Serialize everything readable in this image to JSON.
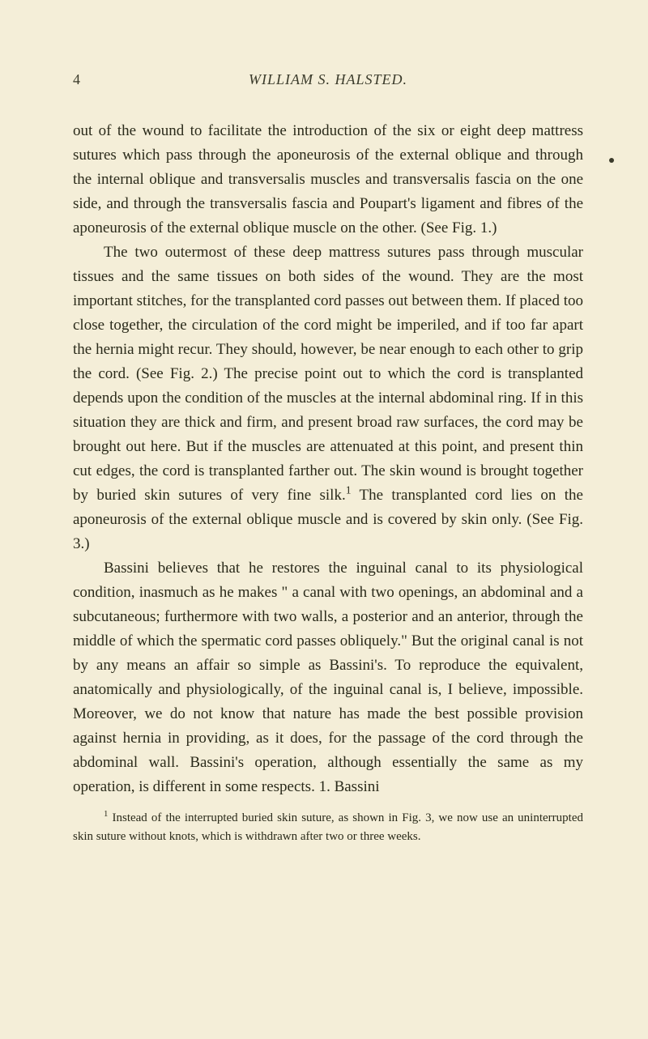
{
  "page": {
    "number": "4",
    "header": "WILLIAM S. HALSTED.",
    "background_color": "#f4eed8",
    "text_color": "#2a2a1a",
    "header_color": "#3a3a2a",
    "body_fontsize": 19,
    "header_fontsize": 18,
    "footnote_fontsize": 15
  },
  "paragraphs": {
    "p1": "out of the wound to facilitate the introduction of the six or eight deep mattress sutures which pass through the aponeurosis of the external oblique and through the internal oblique and transversalis muscles and transversalis fascia on the one side, and through the transversalis fascia and Poupart's ligament and fibres of the aponeurosis of the external oblique muscle on the other. (See Fig. 1.)",
    "p2": "The two outermost of these deep mattress sutures pass through muscular tissues and the same tissues on both sides of the wound. They are the most important stitches, for the transplanted cord passes out between them. If placed too close together, the circulation of the cord might be imperiled, and if too far apart the hernia might recur. They should, however, be near enough to each other to grip the cord. (See Fig. 2.) The precise point out to which the cord is transplanted depends upon the condition of the muscles at the internal abdominal ring. If in this situation they are thick and firm, and present broad raw surfaces, the cord may be brought out here. But if the muscles are attenuated at this point, and present thin cut edges, the cord is transplanted farther out. The skin wound is brought together by buried skin sutures of very fine silk.",
    "p2_after_sup": " The transplanted cord lies on the aponeurosis of the external oblique muscle and is covered by skin only. (See Fig. 3.)",
    "p3": "Bassini believes that he restores the inguinal canal to its physiological condition, inasmuch as he makes \" a canal with two openings, an abdominal and a subcutaneous; furthermore with two walls, a posterior and an anterior, through the middle of which the spermatic cord passes obliquely.\" But the original canal is not by any means an affair so simple as Bassini's. To reproduce the equivalent, anatomically and physiologically, of the inguinal canal is, I believe, impossible. Moreover, we do not know that nature has made the best possible provision against hernia in providing, as it does, for the passage of the cord through the abdominal wall. Bassini's operation, although essentially the same as my operation, is different in some respects. 1. Bassini"
  },
  "footnote": {
    "marker": "1",
    "text": " Instead of the interrupted buried skin suture, as shown in Fig. 3, we now use an uninterrupted skin suture without knots, which is withdrawn after two or three weeks."
  }
}
